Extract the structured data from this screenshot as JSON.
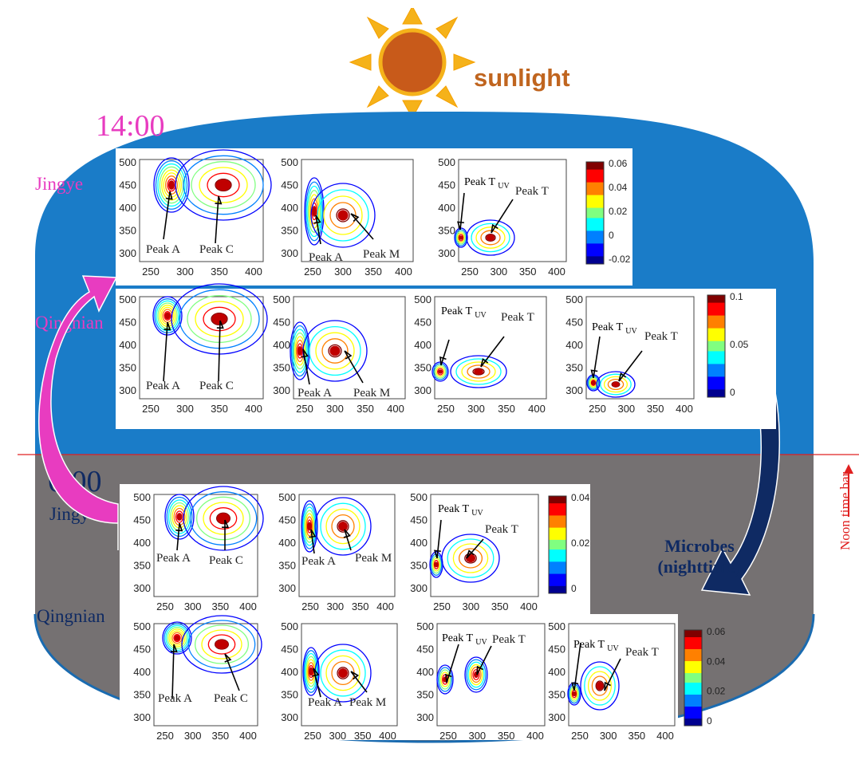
{
  "header": {
    "sunlight": "sunlight"
  },
  "times": {
    "day": "14:00",
    "night": "6:00"
  },
  "sites": {
    "jingye": "Jingye",
    "qingnian": "Qingnian"
  },
  "side": {
    "microbes_line1": "Microbes",
    "microbes_line2": "(nighttime)",
    "noon_time_bar": "Noon time bar"
  },
  "peaks": {
    "a": "Peak A",
    "c": "Peak C",
    "m": "Peak M",
    "t": "Peak T",
    "tuv_base": "Peak T",
    "tuv_sub": "UV"
  },
  "axes": {
    "y_ticks": [
      "500",
      "450",
      "400",
      "350",
      "300"
    ],
    "x_ticks_a": [
      "250",
      "300",
      "350",
      "400"
    ],
    "x_ticks_m": [
      "250",
      "300",
      "350",
      "400"
    ]
  },
  "colorbars": [
    {
      "ticks": [
        "0.06",
        "0.04",
        "0.02",
        "0",
        "-0.02"
      ]
    },
    {
      "ticks": [
        "0.1",
        "0.05",
        "0"
      ]
    },
    {
      "ticks": [
        "0.04",
        "0.02",
        "0"
      ]
    },
    {
      "ticks": [
        "0.06",
        "0.04",
        "0.02",
        "0"
      ]
    }
  ],
  "colors": {
    "sky": "#1a7cc8",
    "night": "#757172",
    "magenta": "#e83cc0",
    "navy": "#0f2a63",
    "sun": "#f5b21a",
    "sun_core": "#c85a1a",
    "red_line": "#e02020"
  }
}
